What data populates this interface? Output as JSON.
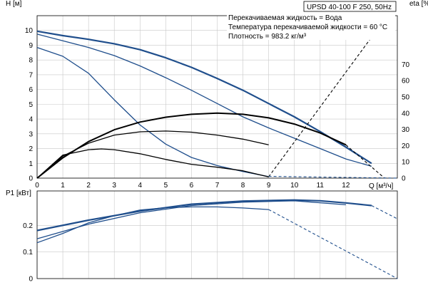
{
  "header": {
    "model": "UPSD 40-100 F 250, 50Hz",
    "notes": [
      "Перекачиваемая жидкость = Вода",
      "Температура перекачиваемой жидкости = 60 °C",
      "Плотность = 983.2 кг/м³"
    ]
  },
  "chart_data": [
    {
      "type": "line",
      "title": "",
      "xlabel": "Q [м³/ч]",
      "ylabel": "H [м]",
      "y2label": "eta [%]",
      "xlim": [
        0,
        14
      ],
      "ylim": [
        0,
        11
      ],
      "y2lim": [
        0,
        100
      ],
      "x_ticks": [
        0,
        1,
        2,
        3,
        4,
        5,
        6,
        7,
        8,
        9,
        10,
        11,
        12
      ],
      "y_ticks": [
        0,
        1,
        2,
        3,
        4,
        5,
        6,
        7,
        8,
        9,
        10
      ],
      "y2_ticks": [
        0,
        10,
        20,
        30,
        40,
        50,
        60,
        70
      ],
      "grid": true,
      "series": [
        {
          "axis": "y",
          "color": "#1f4e8c",
          "width": 2.2,
          "style": "solid",
          "x": [
            0,
            1,
            2,
            3,
            4,
            5,
            6,
            7,
            8,
            9,
            10,
            11,
            12,
            13
          ],
          "y": [
            9.95,
            9.65,
            9.4,
            9.1,
            8.7,
            8.15,
            7.5,
            6.75,
            5.95,
            5.05,
            4.15,
            3.15,
            2.1,
            1.0
          ]
        },
        {
          "axis": "y",
          "color": "#1f4e8c",
          "width": 1.3,
          "style": "solid",
          "x": [
            0,
            1,
            2,
            3,
            4,
            5,
            6,
            7,
            8,
            9,
            10,
            11,
            12,
            13
          ],
          "y": [
            9.75,
            9.3,
            8.85,
            8.3,
            7.6,
            6.8,
            5.95,
            5.05,
            4.15,
            3.4,
            2.7,
            2.0,
            1.3,
            0.8
          ]
        },
        {
          "axis": "y",
          "color": "#1f4e8c",
          "width": 1.3,
          "style": "solid",
          "x": [
            0,
            1,
            2,
            3,
            4,
            5,
            6,
            7,
            8,
            9
          ],
          "y": [
            8.85,
            8.25,
            7.1,
            5.3,
            3.6,
            2.3,
            1.4,
            0.85,
            0.45,
            0.1
          ]
        },
        {
          "axis": "y2",
          "color": "#000000",
          "width": 2.0,
          "style": "solid",
          "x": [
            0,
            1,
            2,
            3,
            4,
            5,
            6,
            7,
            8,
            9,
            10,
            11,
            12
          ],
          "y": [
            0,
            12.5,
            22.5,
            29.8,
            34.5,
            37.5,
            39.3,
            40.0,
            39.3,
            37.1,
            33.3,
            27.8,
            20.5
          ]
        },
        {
          "axis": "y2",
          "color": "#000000",
          "width": 1.3,
          "style": "solid",
          "x": [
            0,
            1,
            2,
            3,
            4,
            5,
            6,
            7,
            8,
            9
          ],
          "y": [
            0,
            13.5,
            21.5,
            26.5,
            28.5,
            29.0,
            28.3,
            26.5,
            24.0,
            20.5
          ]
        },
        {
          "axis": "y2",
          "color": "#000000",
          "width": 1.3,
          "style": "solid",
          "x": [
            0,
            1,
            2,
            2.5,
            3,
            4,
            5,
            6,
            7,
            8,
            9
          ],
          "y": [
            0,
            14.2,
            17.5,
            18.0,
            17.5,
            15.0,
            11.5,
            8.5,
            6.7,
            4.5,
            0.8
          ]
        },
        {
          "axis": "y2",
          "color": "#000000",
          "width": 1.1,
          "style": "dashed",
          "x": [
            9,
            13.2
          ],
          "y": [
            0.8,
            91.0
          ]
        },
        {
          "axis": "y2",
          "color": "#000000",
          "width": 1.1,
          "style": "dashed",
          "x": [
            12,
            13.5
          ],
          "y": [
            20.5,
            0
          ]
        },
        {
          "axis": "y",
          "color": "#1f4e8c",
          "width": 1.1,
          "style": "dashed",
          "x": [
            9,
            14
          ],
          "y": [
            0.12,
            0.0
          ]
        }
      ]
    },
    {
      "type": "line",
      "title": "",
      "xlabel": "",
      "ylabel": "P1 [кВт]",
      "xlim": [
        0,
        14
      ],
      "ylim": [
        0,
        0.33
      ],
      "y_ticks": [
        0,
        0.1,
        0.2
      ],
      "y_tick_labels": [
        "0",
        "0.1",
        "0.2"
      ],
      "grid": true,
      "series": [
        {
          "color": "#1f4e8c",
          "width": 2.2,
          "style": "solid",
          "x": [
            0,
            2,
            4,
            6,
            8,
            10,
            11,
            12,
            13
          ],
          "y": [
            0.181,
            0.22,
            0.254,
            0.28,
            0.292,
            0.296,
            0.293,
            0.285,
            0.275
          ]
        },
        {
          "color": "#1f4e8c",
          "width": 1.3,
          "style": "solid",
          "x": [
            0,
            2,
            4,
            6,
            8,
            10,
            12
          ],
          "y": [
            0.15,
            0.205,
            0.248,
            0.275,
            0.288,
            0.293,
            0.278
          ]
        },
        {
          "color": "#1f4e8c",
          "width": 1.3,
          "style": "solid",
          "x": [
            0,
            1,
            2,
            3,
            4,
            5,
            6,
            7,
            8,
            9
          ],
          "y": [
            0.135,
            0.17,
            0.21,
            0.237,
            0.258,
            0.267,
            0.27,
            0.27,
            0.266,
            0.26
          ]
        },
        {
          "color": "#1f4e8c",
          "width": 1.1,
          "style": "dashed",
          "x": [
            13,
            14
          ],
          "y": [
            0.275,
            0.225
          ]
        },
        {
          "color": "#1f4e8c",
          "width": 1.1,
          "style": "dashed",
          "x": [
            9,
            14
          ],
          "y": [
            0.26,
            0.0
          ]
        }
      ]
    }
  ]
}
